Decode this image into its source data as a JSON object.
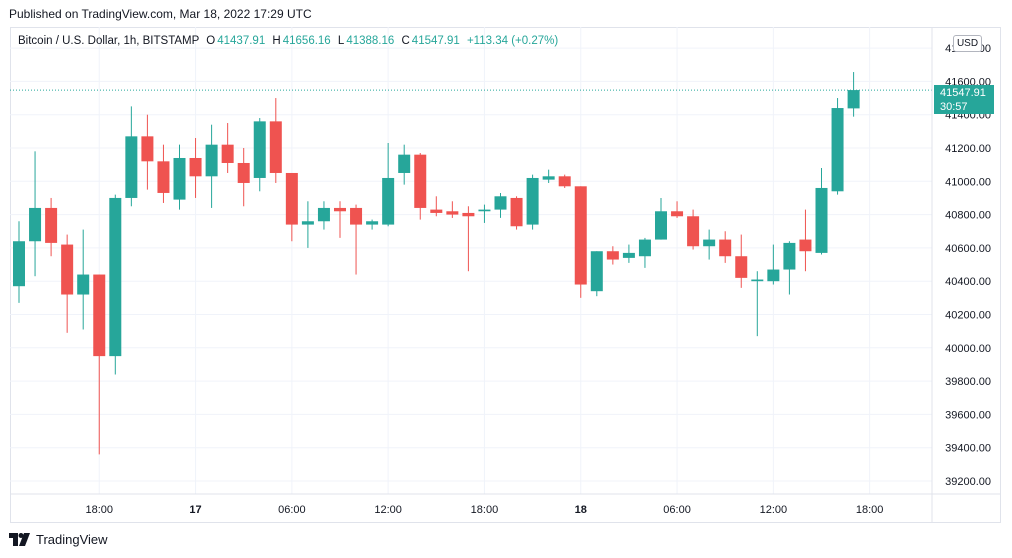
{
  "published": "Published on TradingView.com, Mar 18, 2022 17:29 UTC",
  "legend": {
    "title": "Bitcoin / U.S. Dollar, 1h, BITSTAMP",
    "open_label": "O",
    "open": "41437.91",
    "high_label": "H",
    "high": "41656.16",
    "low_label": "L",
    "low": "41388.16",
    "close_label": "C",
    "close": "41547.91",
    "change": "+113.34 (+0.27%)"
  },
  "currency": "USD",
  "last_price": {
    "price": "41547.91",
    "countdown": "30:57"
  },
  "footer_brand": "TradingView",
  "colors": {
    "up": "#26a69a",
    "down": "#ef5350",
    "grid": "#f0f3fa"
  },
  "chart_data": {
    "type": "candlestick",
    "symbol": "BTC/USD",
    "interval": "1h",
    "x_ticks": [
      {
        "index": 5,
        "label": "18:00",
        "bold": false
      },
      {
        "index": 11,
        "label": "17",
        "bold": true
      },
      {
        "index": 17,
        "label": "06:00",
        "bold": false
      },
      {
        "index": 23,
        "label": "12:00",
        "bold": false
      },
      {
        "index": 29,
        "label": "18:00",
        "bold": false
      },
      {
        "index": 35,
        "label": "18",
        "bold": true
      },
      {
        "index": 41,
        "label": "06:00",
        "bold": false
      },
      {
        "index": 47,
        "label": "12:00",
        "bold": false
      },
      {
        "index": 53,
        "label": "18:00",
        "bold": false
      }
    ],
    "y_ticks": [
      39200,
      39400,
      39600,
      39800,
      40000,
      40200,
      40400,
      40600,
      40800,
      41000,
      41200,
      41400,
      41600,
      41800
    ],
    "ylim": [
      39100,
      41900
    ],
    "last_price": 41547.91,
    "candles": [
      {
        "o": 40370,
        "h": 40760,
        "l": 40270,
        "c": 40640
      },
      {
        "o": 40640,
        "h": 41180,
        "l": 40430,
        "c": 40840
      },
      {
        "o": 40840,
        "h": 40900,
        "l": 40550,
        "c": 40630
      },
      {
        "o": 40620,
        "h": 40680,
        "l": 40090,
        "c": 40320
      },
      {
        "o": 40320,
        "h": 40710,
        "l": 40110,
        "c": 40440
      },
      {
        "o": 40440,
        "h": 40440,
        "l": 39360,
        "c": 39950
      },
      {
        "o": 39950,
        "h": 40920,
        "l": 39840,
        "c": 40900
      },
      {
        "o": 40900,
        "h": 41450,
        "l": 40850,
        "c": 41270
      },
      {
        "o": 41270,
        "h": 41400,
        "l": 40950,
        "c": 41120
      },
      {
        "o": 41120,
        "h": 41220,
        "l": 40870,
        "c": 40930
      },
      {
        "o": 40890,
        "h": 41220,
        "l": 40830,
        "c": 41140
      },
      {
        "o": 41140,
        "h": 41260,
        "l": 40900,
        "c": 41030
      },
      {
        "o": 41030,
        "h": 41340,
        "l": 40840,
        "c": 41220
      },
      {
        "o": 41220,
        "h": 41350,
        "l": 41050,
        "c": 41110
      },
      {
        "o": 41110,
        "h": 41200,
        "l": 40850,
        "c": 40990
      },
      {
        "o": 41020,
        "h": 41380,
        "l": 40940,
        "c": 41360
      },
      {
        "o": 41360,
        "h": 41500,
        "l": 40990,
        "c": 41050
      },
      {
        "o": 41050,
        "h": 41050,
        "l": 40640,
        "c": 40740
      },
      {
        "o": 40740,
        "h": 40880,
        "l": 40600,
        "c": 40760
      },
      {
        "o": 40760,
        "h": 40880,
        "l": 40710,
        "c": 40840
      },
      {
        "o": 40840,
        "h": 40880,
        "l": 40660,
        "c": 40820
      },
      {
        "o": 40840,
        "h": 40860,
        "l": 40440,
        "c": 40740
      },
      {
        "o": 40740,
        "h": 40770,
        "l": 40710,
        "c": 40760
      },
      {
        "o": 40740,
        "h": 41230,
        "l": 40730,
        "c": 41020
      },
      {
        "o": 41050,
        "h": 41220,
        "l": 40980,
        "c": 41160
      },
      {
        "o": 41160,
        "h": 41170,
        "l": 40770,
        "c": 40840
      },
      {
        "o": 40830,
        "h": 40910,
        "l": 40790,
        "c": 40810
      },
      {
        "o": 40820,
        "h": 40880,
        "l": 40780,
        "c": 40800
      },
      {
        "o": 40810,
        "h": 40850,
        "l": 40460,
        "c": 40790
      },
      {
        "o": 40820,
        "h": 40860,
        "l": 40750,
        "c": 40830
      },
      {
        "o": 40830,
        "h": 40930,
        "l": 40780,
        "c": 40910
      },
      {
        "o": 40900,
        "h": 40910,
        "l": 40710,
        "c": 40730
      },
      {
        "o": 40740,
        "h": 41040,
        "l": 40710,
        "c": 41020
      },
      {
        "o": 41010,
        "h": 41070,
        "l": 40990,
        "c": 41030
      },
      {
        "o": 41030,
        "h": 41040,
        "l": 40960,
        "c": 40970
      },
      {
        "o": 40970,
        "h": 40970,
        "l": 40300,
        "c": 40380
      },
      {
        "o": 40340,
        "h": 40580,
        "l": 40310,
        "c": 40580
      },
      {
        "o": 40580,
        "h": 40610,
        "l": 40500,
        "c": 40530
      },
      {
        "o": 40540,
        "h": 40620,
        "l": 40510,
        "c": 40570
      },
      {
        "o": 40550,
        "h": 40660,
        "l": 40480,
        "c": 40650
      },
      {
        "o": 40650,
        "h": 40900,
        "l": 40650,
        "c": 40820
      },
      {
        "o": 40820,
        "h": 40880,
        "l": 40780,
        "c": 40790
      },
      {
        "o": 40790,
        "h": 40830,
        "l": 40590,
        "c": 40610
      },
      {
        "o": 40610,
        "h": 40710,
        "l": 40530,
        "c": 40650
      },
      {
        "o": 40650,
        "h": 40700,
        "l": 40510,
        "c": 40550
      },
      {
        "o": 40550,
        "h": 40680,
        "l": 40360,
        "c": 40420
      },
      {
        "o": 40400,
        "h": 40460,
        "l": 40070,
        "c": 40410
      },
      {
        "o": 40400,
        "h": 40620,
        "l": 40380,
        "c": 40470
      },
      {
        "o": 40470,
        "h": 40640,
        "l": 40320,
        "c": 40630
      },
      {
        "o": 40650,
        "h": 40830,
        "l": 40460,
        "c": 40580
      },
      {
        "o": 40570,
        "h": 41080,
        "l": 40560,
        "c": 40960
      },
      {
        "o": 40940,
        "h": 41500,
        "l": 40920,
        "c": 41440
      },
      {
        "o": 41437.91,
        "h": 41656.16,
        "l": 41388.16,
        "c": 41547.91
      }
    ]
  }
}
